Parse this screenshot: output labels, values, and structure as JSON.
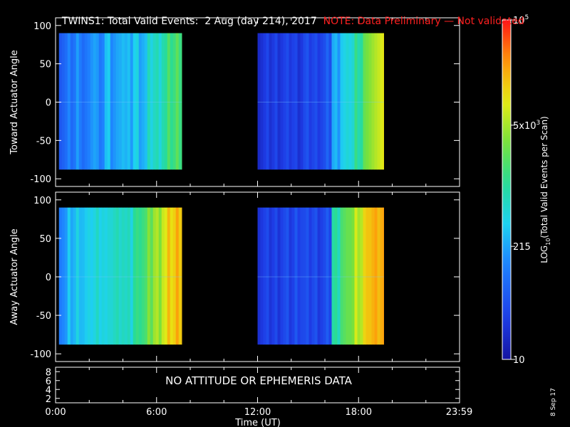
{
  "title": "TWINS1: Total Valid Events:  2 Aug (day 214), 2017",
  "note": "NOTE: Data Preliminary — Not validated",
  "date_stamp": "8 Sep 17",
  "no_data_message": "NO ATTITUDE OR EPHEMERIS DATA",
  "colors": {
    "background": "#000000",
    "axes": "#ffffff",
    "note": "#ff2020"
  },
  "chart_data": [
    {
      "type": "heatmap",
      "panel": "toward",
      "ylabel": "Toward Actuator Angle",
      "xlim": [
        0,
        24
      ],
      "ylim": [
        -110,
        110
      ],
      "yticks": [
        -100,
        -50,
        0,
        50,
        100
      ],
      "xticks": [
        "0:00",
        "6:00",
        "12:00",
        "18:00",
        "23:59"
      ],
      "data_segments": [
        {
          "start_hour": 0.2,
          "end_hour": 7.5,
          "angle_range": [
            -88,
            90
          ],
          "level_profile": [
            0.22,
            0.25,
            0.3,
            0.24,
            0.33,
            0.29,
            0.36,
            0.31,
            0.38,
            0.34,
            0.4,
            0.36,
            0.44,
            0.46,
            0.5,
            0.55,
            0.58
          ]
        },
        {
          "start_hour": 12.0,
          "end_hour": 19.5,
          "angle_range": [
            -88,
            90
          ],
          "level_profile": [
            0.1,
            0.11,
            0.12,
            0.12,
            0.13,
            0.12,
            0.14,
            0.14,
            0.15,
            0.18,
            0.34,
            0.4,
            0.44,
            0.52,
            0.6,
            0.68,
            0.76
          ]
        }
      ]
    },
    {
      "type": "heatmap",
      "panel": "away",
      "ylabel": "Away Actuator Angle",
      "xlim": [
        0,
        24
      ],
      "ylim": [
        -110,
        110
      ],
      "yticks": [
        -100,
        -50,
        0,
        50,
        100
      ],
      "xticks": [
        "0:00",
        "6:00",
        "12:00",
        "18:00",
        "23:59"
      ],
      "data_segments": [
        {
          "start_hour": 0.2,
          "end_hour": 7.5,
          "angle_range": [
            -88,
            90
          ],
          "level_profile": [
            0.3,
            0.36,
            0.4,
            0.38,
            0.42,
            0.44,
            0.4,
            0.46,
            0.48,
            0.44,
            0.52,
            0.56,
            0.62,
            0.68,
            0.74,
            0.8,
            0.84
          ]
        },
        {
          "start_hour": 12.0,
          "end_hour": 19.5,
          "angle_range": [
            -88,
            90
          ],
          "level_profile": [
            0.12,
            0.12,
            0.13,
            0.14,
            0.13,
            0.16,
            0.14,
            0.15,
            0.14,
            0.16,
            0.5,
            0.58,
            0.64,
            0.72,
            0.78,
            0.84,
            0.86
          ]
        }
      ]
    },
    {
      "type": "line",
      "panel": "ephemeris",
      "yticks": [
        2,
        4,
        6,
        8
      ],
      "xticks": [
        "0:00",
        "6:00",
        "12:00",
        "18:00",
        "23:59"
      ],
      "xlabel": "Time (UT)"
    }
  ],
  "colorbar": {
    "label": "LOG10(Total Valid Events per Scan)",
    "scale": "log",
    "ticks": [
      {
        "label": "10",
        "fraction": 0.0
      },
      {
        "label": "215",
        "fraction": 0.333
      },
      {
        "label": "5x10^3",
        "fraction": 0.69
      },
      {
        "label": "10^5",
        "fraction": 1.0
      }
    ]
  }
}
